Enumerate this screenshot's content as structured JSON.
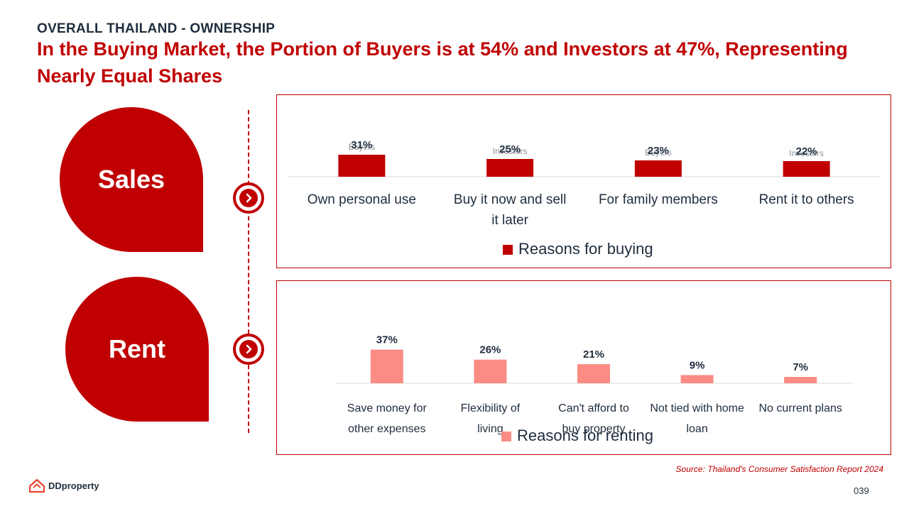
{
  "header": {
    "section": "OVERALL THAILAND - OWNERSHIP",
    "headline": "In the Buying Market, the Portion of Buyers is at 54% and Investors at 47%, Representing Nearly Equal Shares"
  },
  "labels": {
    "sales": "Sales",
    "rent": "Rent"
  },
  "footer": {
    "source": "Source: Thailand's Consumer Satisfaction Report 2024",
    "page": "039",
    "brand": "DDproperty"
  },
  "colors": {
    "accent": "#c00000",
    "buy_bar": "#c00000",
    "rent_bar": "#fb8c84",
    "text": "#1f2d3d"
  },
  "icons": {
    "arrow": "chevron-right-icon",
    "logo": "ddproperty-logo-icon"
  },
  "chart_data": [
    {
      "type": "bar",
      "categories": [
        "Own personal use",
        "Buy it now and sell it later",
        "For family members",
        "Rent it to others"
      ],
      "series": [
        {
          "name": "Reasons for buying",
          "values": [
            31,
            25,
            23,
            22
          ]
        }
      ],
      "value_labels": [
        "31%",
        "25%",
        "23%",
        "22%"
      ],
      "group_labels": [
        "Buyers",
        "Investors",
        "Buyers",
        "Investors"
      ],
      "ylim": [
        0,
        100
      ],
      "legend": "bottom",
      "grid": false
    },
    {
      "type": "bar",
      "categories": [
        "Save money for other expenses",
        "Flexibility of living",
        "Can't afford to buy property",
        "Not tied with home loan",
        "No current plans"
      ],
      "series": [
        {
          "name": "Reasons for renting",
          "values": [
            37,
            26,
            21,
            9,
            7
          ]
        }
      ],
      "value_labels": [
        "37%",
        "26%",
        "21%",
        "9%",
        "7%"
      ],
      "ylim": [
        0,
        100
      ],
      "legend": "bottom",
      "grid": false
    }
  ]
}
